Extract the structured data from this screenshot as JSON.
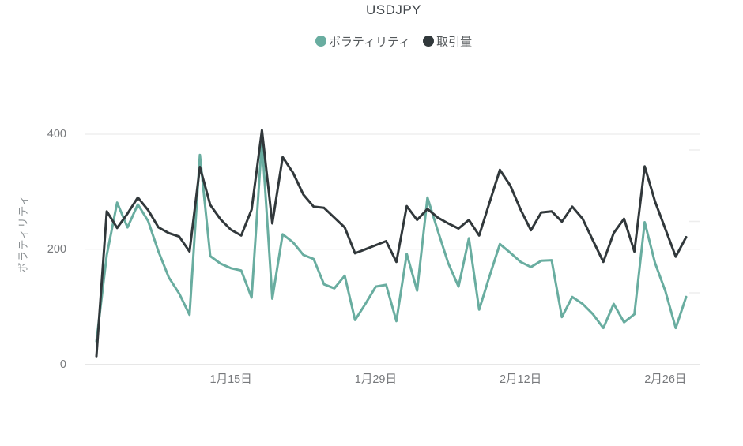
{
  "chart_data": {
    "type": "line",
    "title": "USDJPY",
    "ylabel": "ボラティリティ",
    "xlabel": "",
    "ylim": [
      0,
      400
    ],
    "x_count": 58,
    "grid": true,
    "legend_position": "top-center",
    "y_ticks": [
      {
        "label": "0",
        "value": 0
      },
      {
        "label": "200",
        "value": 200
      },
      {
        "label": "400",
        "value": 400
      }
    ],
    "x_ticks": [
      {
        "label": "1月15日",
        "index": 13
      },
      {
        "label": "1月29日",
        "index": 27
      },
      {
        "label": "2月12日",
        "index": 41
      },
      {
        "label": "2月26日",
        "index": 55
      }
    ],
    "series": [
      {
        "name": "ボラティリティ",
        "color": "#69ada0",
        "values": [
          40,
          190,
          281,
          238,
          278,
          249,
          196,
          151,
          123,
          86,
          364,
          188,
          175,
          167,
          163,
          116,
          390,
          114,
          226,
          212,
          190,
          183,
          139,
          132,
          154,
          77,
          105,
          135,
          138,
          75,
          192,
          128,
          290,
          232,
          176,
          135,
          219,
          95,
          153,
          209,
          194,
          178,
          169,
          180,
          181,
          82,
          117,
          105,
          87,
          63,
          105,
          73,
          87,
          247,
          176,
          127,
          63,
          117
        ]
      },
      {
        "name": "取引量",
        "color": "#31383b",
        "values": [
          14,
          266,
          237,
          262,
          290,
          268,
          238,
          228,
          222,
          196,
          343,
          277,
          252,
          234,
          224,
          269,
          407,
          245,
          360,
          333,
          295,
          274,
          272,
          255,
          238,
          193,
          200,
          207,
          214,
          178,
          275,
          251,
          270,
          255,
          245,
          236,
          251,
          224,
          281,
          338,
          311,
          269,
          233,
          264,
          266,
          248,
          274,
          253,
          215,
          178,
          228,
          253,
          196,
          344,
          283,
          235,
          187,
          221
        ]
      }
    ]
  },
  "legend": [
    {
      "label": "ボラティリティ"
    },
    {
      "label": "取引量"
    }
  ],
  "colors": {
    "grid": "#e7e7e7",
    "grid_secondary": "#ededed",
    "title_text": "#41464b",
    "tick_text": "#77797c",
    "legend_text": "#54585b"
  }
}
